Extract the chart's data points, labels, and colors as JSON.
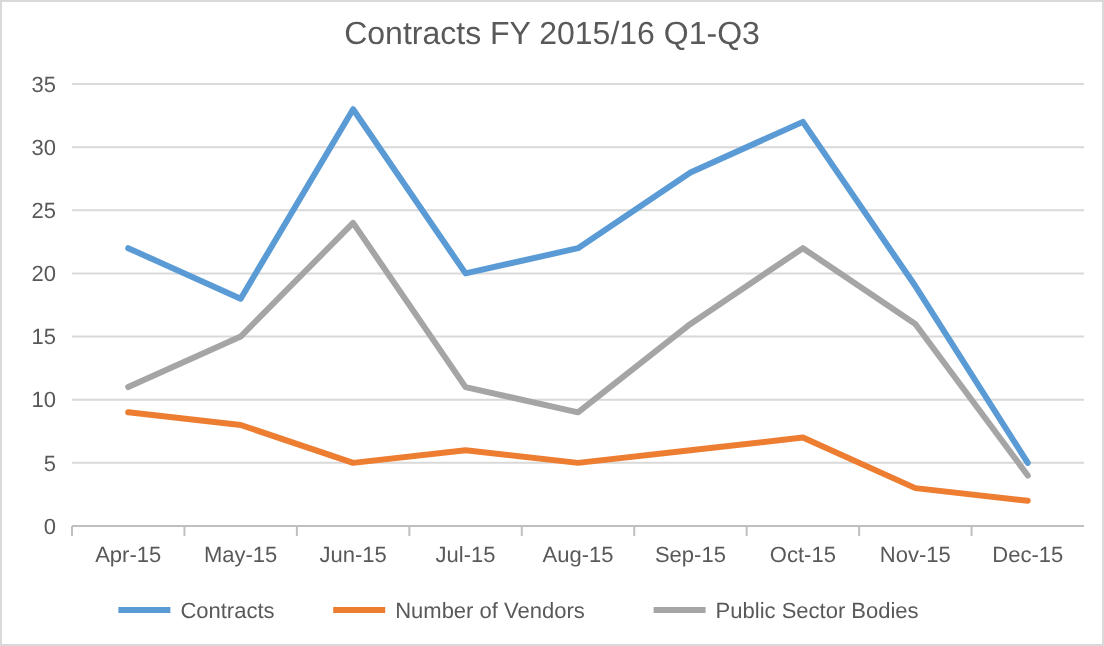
{
  "chart_data": {
    "type": "line",
    "title": "Contracts FY 2015/16 Q1-Q3",
    "categories": [
      "Apr-15",
      "May-15",
      "Jun-15",
      "Jul-15",
      "Aug-15",
      "Sep-15",
      "Oct-15",
      "Nov-15",
      "Dec-15"
    ],
    "series": [
      {
        "name": "Contracts",
        "color": "#5b9bd5",
        "values": [
          22,
          18,
          33,
          20,
          22,
          28,
          32,
          19,
          5
        ]
      },
      {
        "name": "Number of Vendors",
        "color": "#ed7d31",
        "values": [
          9,
          8,
          5,
          6,
          5,
          6,
          7,
          3,
          2
        ]
      },
      {
        "name": "Public Sector Bodies",
        "color": "#a5a5a5",
        "values": [
          11,
          15,
          24,
          11,
          9,
          16,
          22,
          16,
          4
        ]
      }
    ],
    "ylim": [
      0,
      35
    ],
    "yticks": [
      0,
      5,
      10,
      15,
      20,
      25,
      30,
      35
    ],
    "grid": "y",
    "legend": "bottom",
    "marker": "none",
    "line_style": "solid"
  }
}
